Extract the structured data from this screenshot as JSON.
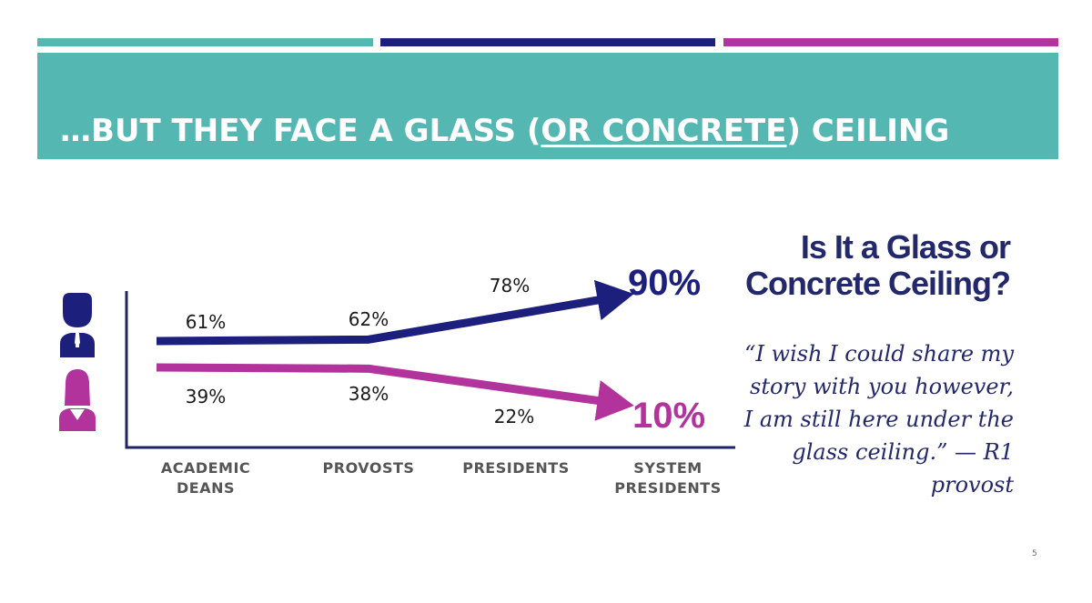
{
  "colors": {
    "teal": "#55b7b2",
    "navy": "#1c1f7c",
    "magenta": "#b2339b",
    "heading": "#23286b",
    "axis": "#1f2366"
  },
  "title": {
    "before": "…BUT THEY FACE A GLASS (",
    "underlined": "OR CONCRETE",
    "after": ") CEILING"
  },
  "side": {
    "heading_line1": "Is It a Glass or",
    "heading_line2": "Concrete Ceiling?",
    "quote": "“I wish I could share my story with you however, I am still here under the glass ceiling.” — R1 provost"
  },
  "slide_number": "5",
  "icons": [
    "male-icon",
    "female-icon"
  ],
  "chart_data": {
    "type": "line",
    "categories": [
      "ACADEMIC DEANS",
      "PROVOSTS",
      "PRESIDENTS",
      "SYSTEM PRESIDENTS"
    ],
    "series": [
      {
        "key": "male",
        "color": "#1c1f7c",
        "values": [
          61,
          62,
          78,
          90
        ],
        "labels": [
          "61%",
          "62%",
          "78%",
          "90%"
        ]
      },
      {
        "key": "female",
        "color": "#b2339b",
        "values": [
          39,
          38,
          22,
          10
        ],
        "labels": [
          "39%",
          "38%",
          "22%",
          "10%"
        ]
      }
    ],
    "ylim": [
      0,
      100
    ],
    "title": "",
    "xlabel": "",
    "ylabel": ""
  }
}
